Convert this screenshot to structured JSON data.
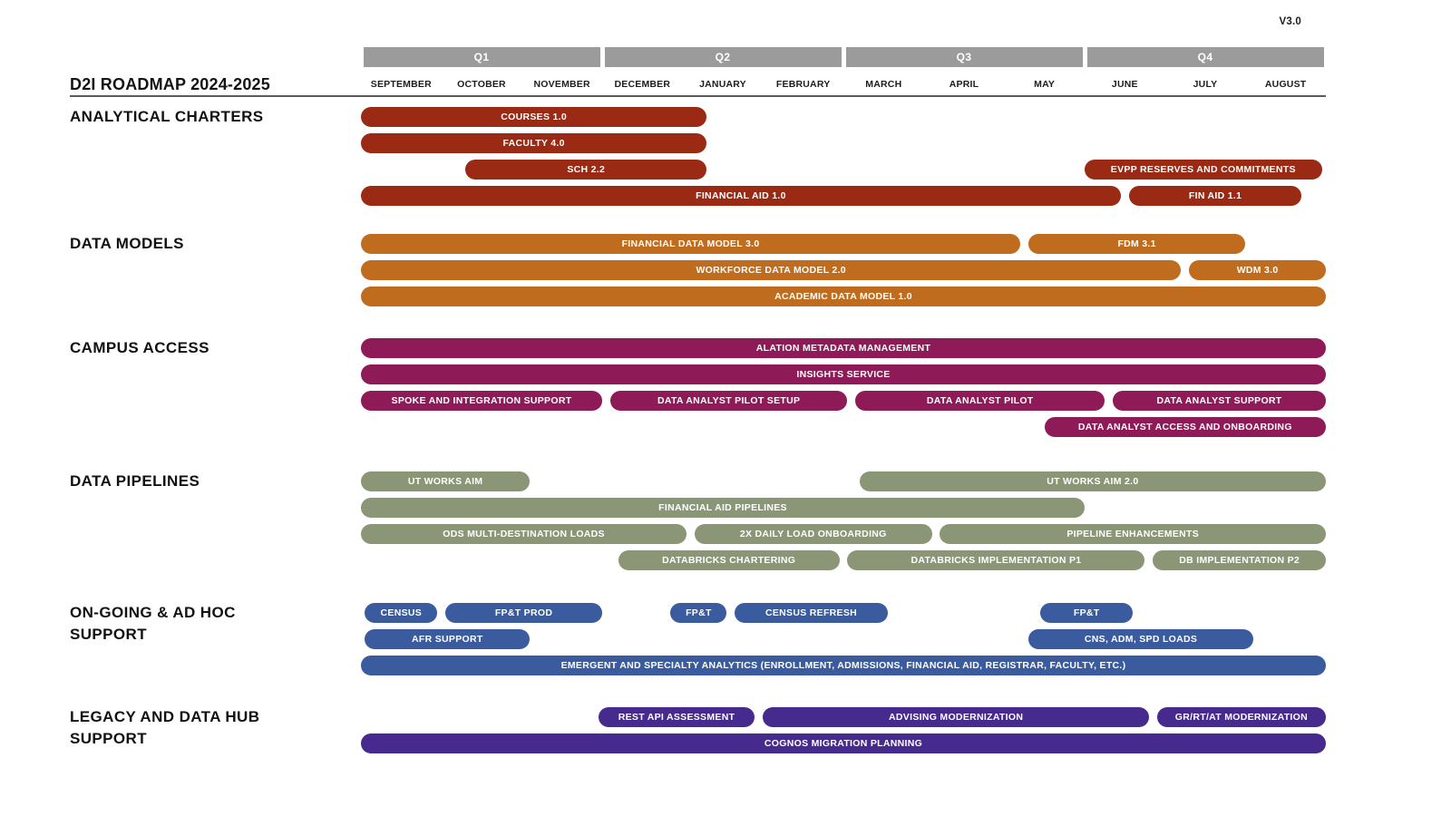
{
  "header": {
    "version": "V3.0",
    "title": "D2I ROADMAP 2024-2025"
  },
  "colors": {
    "quarter_bar": "#9b9b9b",
    "analytical_charters": "#9a2a13",
    "data_models": "#bf6c1e",
    "campus_access": "#8e1b58",
    "data_pipelines": "#8b9677",
    "ongoing_support": "#3a5c9e",
    "legacy_support": "#472a8d",
    "text_dark": "#1d1d1d",
    "bar_text": "#ffffff"
  },
  "chart_data": {
    "type": "bar",
    "subtype": "gantt-roadmap",
    "title": "D2I ROADMAP 2024-2025",
    "version": "V3.0",
    "x_axis": {
      "unit": "months (0 = start of September, 12 = end of August)",
      "range": [
        0,
        12
      ],
      "grid": "off",
      "quarters": [
        {
          "label": "Q1",
          "months": [
            "SEPTEMBER",
            "OCTOBER",
            "NOVEMBER"
          ]
        },
        {
          "label": "Q2",
          "months": [
            "DECEMBER",
            "JANUARY",
            "FEBRUARY"
          ]
        },
        {
          "label": "Q3",
          "months": [
            "MARCH",
            "APRIL",
            "MAY"
          ]
        },
        {
          "label": "Q4",
          "months": [
            "JUNE",
            "JULY",
            "AUGUST"
          ]
        }
      ]
    },
    "sections": [
      {
        "label": "ANALYTICAL CHARTERS",
        "color": "#9a2a13",
        "rows": [
          [
            {
              "task": "COURSES 1.0",
              "start": 0,
              "end": 4.3
            }
          ],
          [
            {
              "task": "FACULTY 4.0",
              "start": 0,
              "end": 4.3
            }
          ],
          [
            {
              "task": "SCH 2.2",
              "start": 1.3,
              "end": 4.3
            },
            {
              "task": "EVPP RESERVES AND COMMITMENTS",
              "start": 9.0,
              "end": 11.95
            }
          ],
          [
            {
              "task": "FINANCIAL AID 1.0",
              "start": 0,
              "end": 9.45
            },
            {
              "task": "FIN AID 1.1",
              "start": 9.55,
              "end": 11.7
            }
          ]
        ]
      },
      {
        "label": "DATA MODELS",
        "color": "#bf6c1e",
        "rows": [
          [
            {
              "task": "FINANCIAL DATA MODEL 3.0",
              "start": 0,
              "end": 8.2
            },
            {
              "task": "FDM 3.1",
              "start": 8.3,
              "end": 11.0
            }
          ],
          [
            {
              "task": "WORKFORCE DATA MODEL 2.0",
              "start": 0,
              "end": 10.2
            },
            {
              "task": "WDM 3.0",
              "start": 10.3,
              "end": 12
            }
          ],
          [
            {
              "task": "ACADEMIC DATA MODEL 1.0",
              "start": 0,
              "end": 12
            }
          ]
        ]
      },
      {
        "label": "CAMPUS ACCESS",
        "color": "#8e1b58",
        "rows": [
          [
            {
              "task": "ALATION METADATA MANAGEMENT",
              "start": 0,
              "end": 12
            }
          ],
          [
            {
              "task": "INSIGHTS SERVICE",
              "start": 0,
              "end": 12
            }
          ],
          [
            {
              "task": "SPOKE AND INTEGRATION SUPPORT",
              "start": 0,
              "end": 3.0
            },
            {
              "task": "DATA ANALYST PILOT SETUP",
              "start": 3.1,
              "end": 6.05
            },
            {
              "task": "DATA ANALYST PILOT",
              "start": 6.15,
              "end": 9.25
            },
            {
              "task": "DATA ANALYST SUPPORT",
              "start": 9.35,
              "end": 12
            }
          ],
          [
            {
              "task": "DATA ANALYST ACCESS AND ONBOARDING",
              "start": 8.5,
              "end": 12
            }
          ]
        ]
      },
      {
        "label": "DATA PIPELINES",
        "color": "#8b9677",
        "rows": [
          [
            {
              "task": "UT WORKS AIM",
              "start": 0,
              "end": 2.1
            },
            {
              "task": "UT WORKS AIM 2.0",
              "start": 6.2,
              "end": 12
            }
          ],
          [
            {
              "task": "FINANCIAL AID PIPELINES",
              "start": 0,
              "end": 9.0
            }
          ],
          [
            {
              "task": "ODS MULTI-DESTINATION LOADS",
              "start": 0,
              "end": 4.05
            },
            {
              "task": "2X DAILY LOAD ONBOARDING",
              "start": 4.15,
              "end": 7.1
            },
            {
              "task": "PIPELINE ENHANCEMENTS",
              "start": 7.2,
              "end": 12
            }
          ],
          [
            {
              "task": "DATABRICKS CHARTERING",
              "start": 3.2,
              "end": 5.95
            },
            {
              "task": "DATABRICKS IMPLEMENTATION P1",
              "start": 6.05,
              "end": 9.75
            },
            {
              "task": "DB IMPLEMENTATION P2",
              "start": 9.85,
              "end": 12
            }
          ]
        ]
      },
      {
        "label": "ON-GOING & AD HOC\nSUPPORT",
        "color": "#3a5c9e",
        "rows": [
          [
            {
              "task": "CENSUS",
              "start": 0.05,
              "end": 0.95
            },
            {
              "task": "FP&T PROD",
              "start": 1.05,
              "end": 3.0
            },
            {
              "task": "FP&T",
              "start": 3.85,
              "end": 4.55
            },
            {
              "task": "CENSUS REFRESH",
              "start": 4.65,
              "end": 6.55
            },
            {
              "task": "FP&T",
              "start": 8.45,
              "end": 9.6
            }
          ],
          [
            {
              "task": "AFR SUPPORT",
              "start": 0.05,
              "end": 2.1
            },
            {
              "task": "CNS, ADM, SPD LOADS",
              "start": 8.3,
              "end": 11.1
            }
          ],
          [
            {
              "task": "EMERGENT AND SPECIALTY ANALYTICS (ENROLLMENT, ADMISSIONS, FINANCIAL AID, REGISTRAR, FACULTY, ETC.)",
              "start": 0,
              "end": 12
            }
          ]
        ]
      },
      {
        "label": "LEGACY AND DATA HUB\nSUPPORT",
        "color": "#472a8d",
        "rows": [
          [
            {
              "task": "REST API ASSESSMENT",
              "start": 2.95,
              "end": 4.9
            },
            {
              "task": "ADVISING MODERNIZATION",
              "start": 5.0,
              "end": 9.8
            },
            {
              "task": "GR/RT/AT MODERNIZATION",
              "start": 9.9,
              "end": 12
            }
          ],
          [
            {
              "task": "COGNOS MIGRATION PLANNING",
              "start": 0,
              "end": 12
            }
          ]
        ]
      }
    ]
  }
}
